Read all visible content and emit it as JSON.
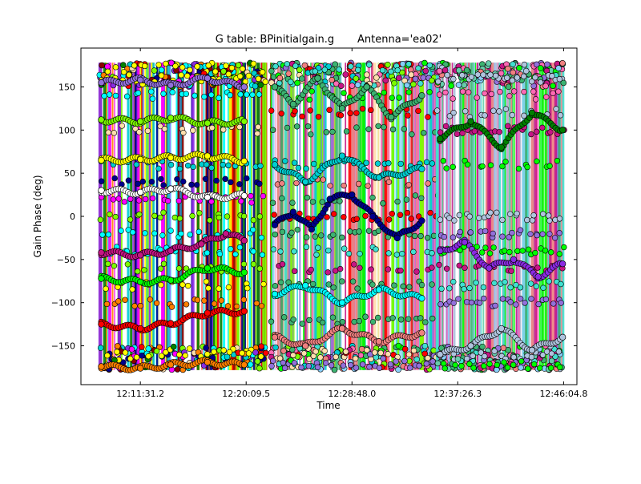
{
  "chart_data": {
    "type": "scatter",
    "title": "G table: BPinitialgain.g       Antenna='ea02'",
    "xlabel": "Time",
    "ylabel": "Gain Phase (deg)",
    "xlim": [
      "12:06:40.0",
      "12:47:10.0"
    ],
    "ylim": [
      -195,
      195
    ],
    "x_tick_labels": [
      "12:11:31.2",
      "12:20:09.5",
      "12:28:48.0",
      "12:37:26.3",
      "12:46:04.8"
    ],
    "x_ticks": [
      "12:11:31.2",
      "12:20:09.5",
      "12:28:48.0",
      "12:37:26.3",
      "12:46:04.8"
    ],
    "y_ticks": [
      -150,
      -100,
      -50,
      0,
      50,
      100,
      150
    ],
    "y_tick_labels": [
      "−150",
      "−100",
      "−50",
      "0",
      "50",
      "100",
      "150"
    ],
    "grid": false,
    "legend": "none",
    "scan_blocks": [
      {
        "start": "12:08:10.0",
        "end": "12:21:50.0"
      },
      {
        "start": "12:22:10.0",
        "end": "12:35:50.0"
      },
      {
        "start": "12:35:45.0",
        "end": "12:46:10.0"
      }
    ],
    "series_colors": [
      "#00ffff",
      "#8a2be2",
      "#ff00ff",
      "#ff7f00",
      "#ffff00",
      "#00008b",
      "#008000",
      "#8b0000",
      "#ff0000",
      "#7cfc00",
      "#00ced1",
      "#ffdead",
      "#ff69b4",
      "#c71585",
      "#9370db",
      "#3cb371",
      "#40e0d0",
      "#87cefa",
      "#00ff00",
      "#f08080",
      "#b0c4de",
      "#66cdaa",
      "#000080",
      "#ffffff"
    ],
    "series": [
      {
        "values": [
          [
            "12:08:20.0",
            -174
          ],
          [
            "12:11:31.2",
            -176
          ],
          [
            "12:14:00.0",
            -172
          ],
          [
            "12:17:00.0",
            -169
          ],
          [
            "12:20:00.0",
            -172
          ]
        ]
      },
      {
        "values": [
          [
            "12:08:20.0",
            -125
          ],
          [
            "12:11:31.2",
            -130
          ],
          [
            "12:14:00.0",
            -124
          ],
          [
            "12:17:00.0",
            -112
          ],
          [
            "12:20:00.0",
            -110
          ]
        ]
      },
      {
        "values": [
          [
            "12:08:20.0",
            -42
          ],
          [
            "12:11:31.2",
            -45
          ],
          [
            "12:14:00.0",
            -40
          ],
          [
            "12:16:30.0",
            -32
          ],
          [
            "12:18:30.0",
            -20
          ],
          [
            "12:20:00.0",
            -28
          ]
        ]
      },
      {
        "values": [
          [
            "12:08:20.0",
            -72
          ],
          [
            "12:11:31.2",
            -76
          ],
          [
            "12:14:00.0",
            -74
          ],
          [
            "12:17:00.0",
            -60
          ],
          [
            "12:20:00.0",
            -65
          ]
        ]
      },
      {
        "values": [
          [
            "12:08:20.0",
            30
          ],
          [
            "12:11:31.2",
            28
          ],
          [
            "12:14:00.0",
            32
          ],
          [
            "12:17:00.0",
            22
          ],
          [
            "12:20:00.0",
            24
          ]
        ]
      },
      {
        "values": [
          [
            "12:08:20.0",
            65
          ],
          [
            "12:11:31.2",
            66
          ],
          [
            "12:14:00.0",
            68
          ],
          [
            "12:17:00.0",
            70
          ],
          [
            "12:20:00.0",
            64
          ]
        ]
      },
      {
        "values": [
          [
            "12:08:20.0",
            112
          ],
          [
            "12:11:31.2",
            110
          ],
          [
            "12:14:00.0",
            114
          ],
          [
            "12:17:00.0",
            108
          ],
          [
            "12:20:00.0",
            110
          ]
        ]
      },
      {
        "values": [
          [
            "12:08:20.0",
            155
          ],
          [
            "12:11:31.2",
            158
          ],
          [
            "12:14:00.0",
            152
          ],
          [
            "12:17:00.0",
            160
          ],
          [
            "12:20:00.0",
            150
          ]
        ]
      },
      {
        "values": [
          [
            "12:22:30.0",
            -140
          ],
          [
            "12:25:00.0",
            -150
          ],
          [
            "12:28:00.0",
            -130
          ],
          [
            "12:31:00.0",
            -145
          ],
          [
            "12:34:30.0",
            -135
          ]
        ]
      },
      {
        "values": [
          [
            "12:22:30.0",
            -90
          ],
          [
            "12:25:00.0",
            -80
          ],
          [
            "12:28:00.0",
            -100
          ],
          [
            "12:31:00.0",
            -85
          ],
          [
            "12:34:30.0",
            -95
          ]
        ]
      },
      {
        "values": [
          [
            "12:22:30.0",
            -10
          ],
          [
            "12:24:00.0",
            5
          ],
          [
            "12:25:30.0",
            -15
          ],
          [
            "12:27:00.0",
            20
          ],
          [
            "12:28:48.0",
            25
          ],
          [
            "12:30:30.0",
            0
          ],
          [
            "12:32:30.0",
            -25
          ],
          [
            "12:34:30.0",
            -5
          ]
        ]
      },
      {
        "values": [
          [
            "12:22:30.0",
            60
          ],
          [
            "12:25:00.0",
            40
          ],
          [
            "12:28:00.0",
            70
          ],
          [
            "12:31:00.0",
            45
          ],
          [
            "12:34:30.0",
            55
          ]
        ]
      },
      {
        "values": [
          [
            "12:22:30.0",
            150
          ],
          [
            "12:24:00.0",
            130
          ],
          [
            "12:26:00.0",
            160
          ],
          [
            "12:28:00.0",
            125
          ],
          [
            "12:30:00.0",
            150
          ],
          [
            "12:32:00.0",
            115
          ],
          [
            "12:34:30.0",
            140
          ]
        ]
      },
      {
        "values": [
          [
            "12:36:00.0",
            -160
          ],
          [
            "12:38:30.0",
            -150
          ],
          [
            "12:41:00.0",
            -130
          ],
          [
            "12:43:30.0",
            -155
          ],
          [
            "12:46:00.0",
            -140
          ]
        ]
      },
      {
        "values": [
          [
            "12:36:00.0",
            -40
          ],
          [
            "12:38:00.0",
            -30
          ],
          [
            "12:40:00.0",
            -60
          ],
          [
            "12:42:00.0",
            -50
          ],
          [
            "12:44:00.0",
            -70
          ],
          [
            "12:46:00.0",
            -55
          ]
        ]
      },
      {
        "values": [
          [
            "12:36:00.0",
            90
          ],
          [
            "12:38:30.0",
            110
          ],
          [
            "12:41:00.0",
            80
          ],
          [
            "12:43:30.0",
            120
          ],
          [
            "12:46:00.0",
            100
          ]
        ]
      }
    ]
  }
}
